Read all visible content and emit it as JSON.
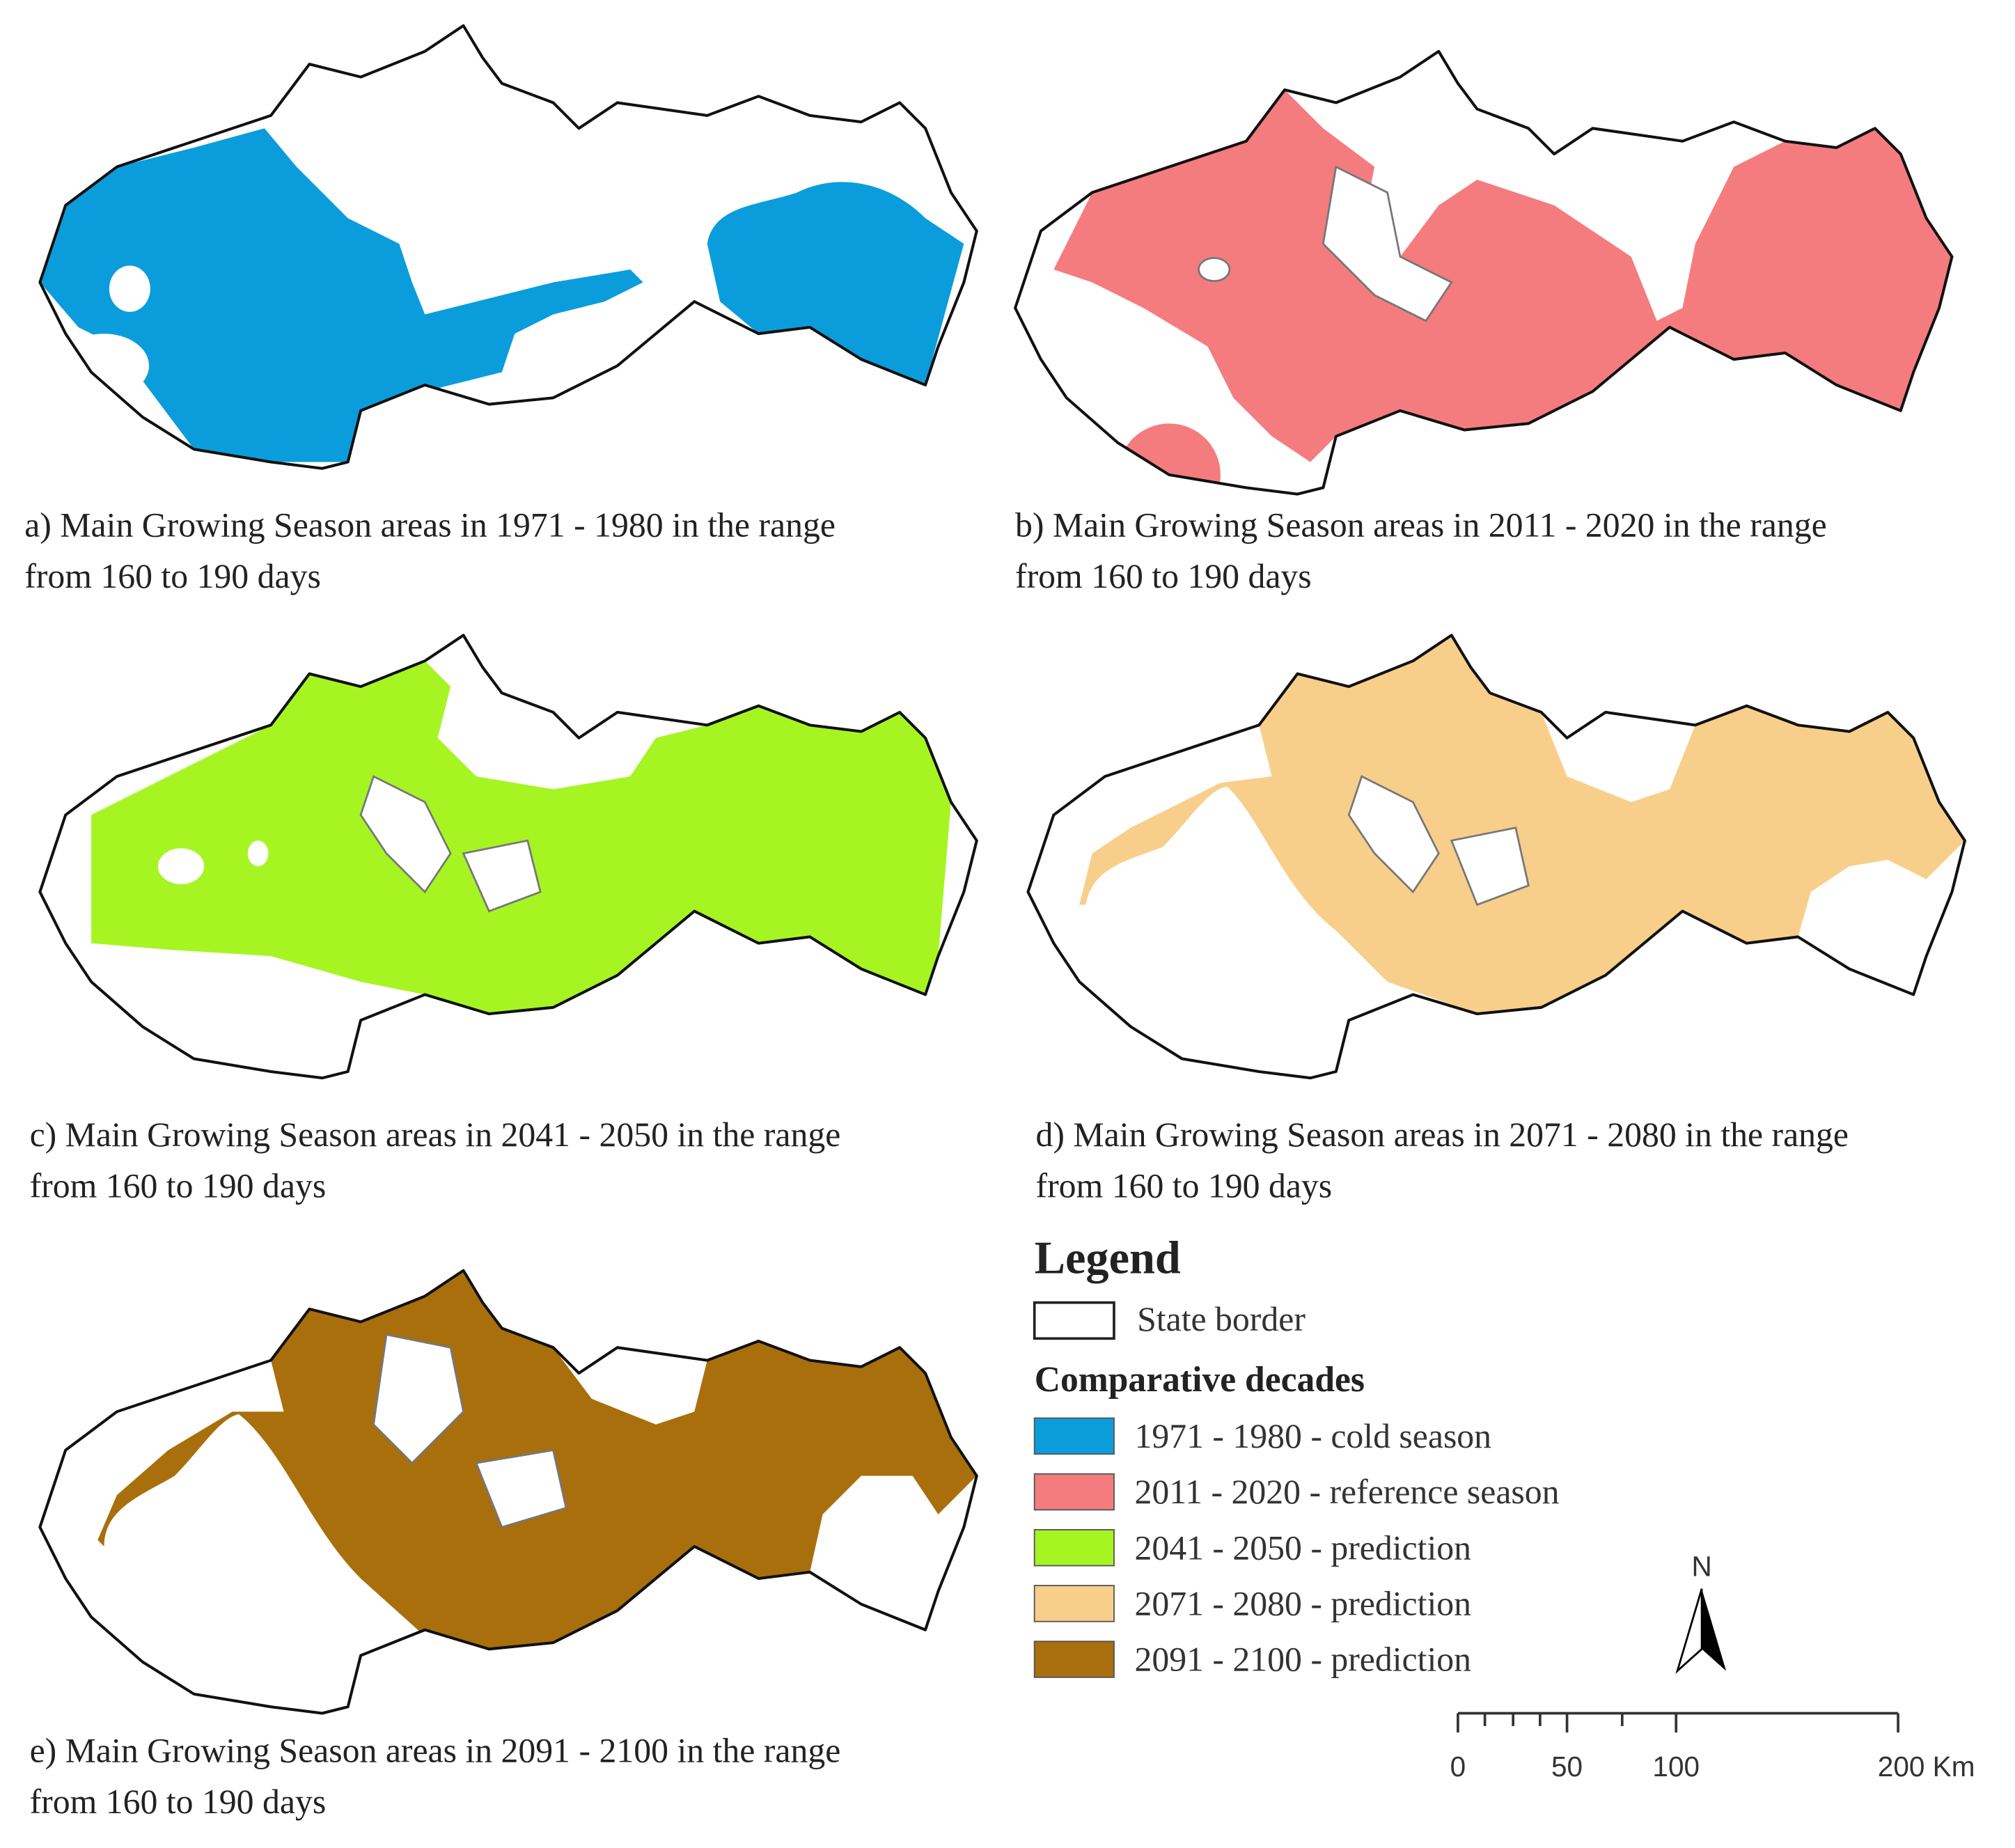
{
  "panels": [
    {
      "caption_line1": "a) Main Growing Season areas in 1971 - 1980 in the range",
      "caption_line2": "from 160 to 190 days"
    },
    {
      "caption_line1": "b) Main Growing Season areas in 2011 - 2020 in the range",
      "caption_line2": "from 160 to 190 days"
    },
    {
      "caption_line1": "c) Main Growing Season areas in 2041 - 2050 in the range",
      "caption_line2": "from 160 to 190 days"
    },
    {
      "caption_line1": "d) Main Growing Season areas in 2071 - 2080 in the range",
      "caption_line2": "from 160 to 190 days"
    },
    {
      "caption_line1": "e) Main Growing Season areas in 2091 - 2100 in the range",
      "caption_line2": "from 160 to 190 days"
    }
  ],
  "legend": {
    "title": "Legend",
    "border_label": "State border",
    "section_title": "Comparative decades",
    "items": [
      {
        "label": "1971 - 1980 - cold season",
        "color": "#0b9ddb"
      },
      {
        "label": "2011 - 2020 - reference season",
        "color": "#f47c7f"
      },
      {
        "label": "2041 - 2050 - prediction",
        "color": "#a6f523"
      },
      {
        "label": "2071 - 2080 - prediction",
        "color": "#f8cf8a"
      },
      {
        "label": "2091 - 2100 - prediction",
        "color": "#a86f0c"
      }
    ]
  },
  "scale_bar": {
    "labels": [
      "0",
      "50",
      "100",
      "200 Km"
    ]
  },
  "north_label": "N"
}
